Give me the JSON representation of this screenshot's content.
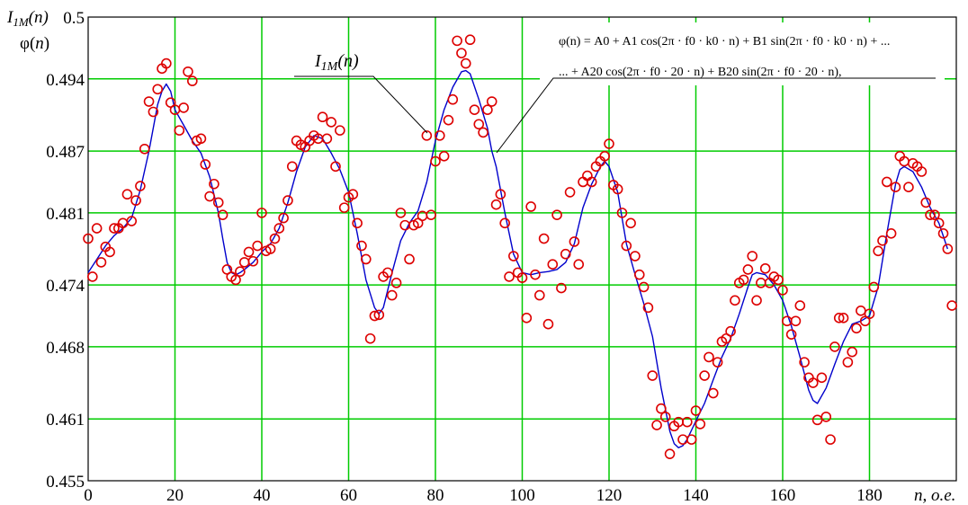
{
  "chart_data": {
    "type": "scatter",
    "ylabel_lines": [
      "I1M(n)",
      "φ(n)"
    ],
    "xlabel": "n, о.е.",
    "xlim": [
      0,
      200
    ],
    "ylim": [
      0.455,
      0.5
    ],
    "x_ticks": [
      0,
      20,
      40,
      60,
      80,
      100,
      120,
      140,
      160,
      180
    ],
    "y_ticks": [
      {
        "value": 0.455,
        "label": "0.455"
      },
      {
        "value": 0.461,
        "label": "0.461"
      },
      {
        "value": 0.468,
        "label": "0.468"
      },
      {
        "value": 0.474,
        "label": "0.474"
      },
      {
        "value": 0.481,
        "label": "0.481"
      },
      {
        "value": 0.487,
        "label": "0.487"
      },
      {
        "value": 0.494,
        "label": "0.494"
      },
      {
        "value": 0.5,
        "label": "0.5"
      }
    ],
    "grid": true,
    "grid_color": "#00cc00",
    "annotations": {
      "series_label": "I1M(n)",
      "formula_line1": "φ(n) = A0 + A1 cos(2π · f0 · k0 · n) + B1 sin(2π · f0 · k0 · n) + ...",
      "formula_line2": "... + A20 cos(2π · f0 · 20 · n) + B20 sin(2π · f0 · 20 · n),"
    },
    "series": [
      {
        "name": "I1M(n)",
        "type": "scatter",
        "color": "#dd0000",
        "x": [
          0,
          1,
          2,
          3,
          4,
          5,
          6,
          7,
          8,
          9,
          10,
          11,
          12,
          13,
          14,
          15,
          16,
          17,
          18,
          19,
          20,
          21,
          22,
          23,
          24,
          25,
          26,
          27,
          28,
          29,
          30,
          31,
          32,
          33,
          34,
          35,
          36,
          37,
          38,
          39,
          40,
          41,
          42,
          43,
          44,
          45,
          46,
          47,
          48,
          49,
          50,
          51,
          52,
          53,
          54,
          55,
          56,
          57,
          58,
          59,
          60,
          61,
          62,
          63,
          64,
          65,
          66,
          67,
          68,
          69,
          70,
          71,
          72,
          73,
          74,
          75,
          76,
          77,
          78,
          79,
          80,
          81,
          82,
          83,
          84,
          85,
          86,
          87,
          88,
          89,
          90,
          91,
          92,
          93,
          94,
          95,
          96,
          97,
          98,
          99,
          100,
          101,
          102,
          103,
          104,
          105,
          106,
          107,
          108,
          109,
          110,
          111,
          112,
          113,
          114,
          115,
          116,
          117,
          118,
          119,
          120,
          121,
          122,
          123,
          124,
          125,
          126,
          127,
          128,
          129,
          130,
          131,
          132,
          133,
          134,
          135,
          136,
          137,
          138,
          139,
          140,
          141,
          142,
          143,
          144,
          145,
          146,
          147,
          148,
          149,
          150,
          151,
          152,
          153,
          154,
          155,
          156,
          157,
          158,
          159,
          160,
          161,
          162,
          163,
          164,
          165,
          166,
          167,
          168,
          169,
          170,
          171,
          172,
          173,
          174,
          175,
          176,
          177,
          178,
          179,
          180,
          181,
          182,
          183,
          184,
          185,
          186,
          187,
          188,
          189,
          190,
          191,
          192,
          193,
          194,
          195,
          196,
          197,
          198,
          199
        ],
        "y": [
          0.4785,
          0.4748,
          0.4795,
          0.4762,
          0.4777,
          0.4772,
          0.4795,
          0.4795,
          0.48,
          0.4828,
          0.4802,
          0.4822,
          0.4836,
          0.4872,
          0.4918,
          0.4908,
          0.493,
          0.495,
          0.4955,
          0.4917,
          0.491,
          0.489,
          0.4912,
          0.4947,
          0.4938,
          0.488,
          0.4882,
          0.4857,
          0.4826,
          0.4838,
          0.482,
          0.4808,
          0.4755,
          0.4748,
          0.4745,
          0.4753,
          0.4762,
          0.4772,
          0.4763,
          0.4778,
          0.481,
          0.4773,
          0.4775,
          0.4785,
          0.4795,
          0.4805,
          0.4822,
          0.4855,
          0.488,
          0.4876,
          0.4874,
          0.488,
          0.4885,
          0.4882,
          0.4903,
          0.4882,
          0.4898,
          0.4855,
          0.489,
          0.4815,
          0.4825,
          0.4828,
          0.48,
          0.4778,
          0.4765,
          0.4688,
          0.471,
          0.4711,
          0.4748,
          0.4752,
          0.473,
          0.4742,
          0.481,
          0.4798,
          0.4765,
          0.4798,
          0.48,
          0.4807,
          0.4885,
          0.4808,
          0.486,
          0.4885,
          0.4865,
          0.49,
          0.492,
          0.4977,
          0.4965,
          0.4955,
          0.4978,
          0.491,
          0.4896,
          0.4888,
          0.491,
          0.4918,
          0.4818,
          0.4828,
          0.48,
          0.4748,
          0.4768,
          0.4752,
          0.4747,
          0.4708,
          0.4816,
          0.475,
          0.473,
          0.4785,
          0.4702,
          0.476,
          0.4808,
          0.4737,
          0.477,
          0.483,
          0.4782,
          0.476,
          0.484,
          0.4846,
          0.484,
          0.4855,
          0.486,
          0.4865,
          0.4877,
          0.4837,
          0.4833,
          0.481,
          0.4778,
          0.48,
          0.4768,
          0.475,
          0.4738,
          0.4718,
          0.4652,
          0.4604,
          0.462,
          0.4612,
          0.4576,
          0.4603,
          0.4607,
          0.459,
          0.4607,
          0.459,
          0.4618,
          0.4605,
          0.4652,
          0.467,
          0.4635,
          0.4665,
          0.4685,
          0.4688,
          0.4695,
          0.4725,
          0.4742,
          0.4745,
          0.4755,
          0.4768,
          0.4725,
          0.4742,
          0.4756,
          0.4742,
          0.4748,
          0.4745,
          0.4735,
          0.4705,
          0.4692,
          0.4705,
          0.472,
          0.4665,
          0.465,
          0.4645,
          0.4609,
          0.465,
          0.4612,
          0.459,
          0.468,
          0.4708,
          0.4708,
          0.4665,
          0.4675,
          0.4698,
          0.4715,
          0.4705,
          0.4712,
          0.4738,
          0.4773,
          0.4783,
          0.484,
          0.479,
          0.4835,
          0.4865,
          0.486,
          0.4835,
          0.4858,
          0.4855,
          0.485,
          0.482,
          0.4808,
          0.4808,
          0.48,
          0.479,
          0.4775,
          0.472
        ]
      },
      {
        "name": "φ(n)",
        "type": "line",
        "color": "#0000cc",
        "x": [
          0,
          2,
          4,
          6,
          8,
          10,
          12,
          14,
          16,
          17,
          18,
          19,
          20,
          22,
          24,
          26,
          28,
          30,
          31,
          32,
          33,
          34,
          35,
          36,
          38,
          40,
          42,
          44,
          46,
          48,
          50,
          52,
          54,
          56,
          58,
          60,
          62,
          64,
          66,
          67,
          68,
          70,
          72,
          74,
          76,
          78,
          80,
          82,
          84,
          86,
          87,
          88,
          90,
          92,
          93,
          94,
          96,
          98,
          100,
          102,
          104,
          106,
          108,
          110,
          112,
          114,
          116,
          118,
          119,
          120,
          122,
          124,
          126,
          128,
          130,
          132,
          134,
          135,
          136,
          137,
          138,
          140,
          142,
          144,
          146,
          148,
          150,
          152,
          153,
          154,
          156,
          158,
          160,
          162,
          164,
          166,
          167,
          168,
          170,
          172,
          174,
          176,
          178,
          180,
          182,
          184,
          186,
          187,
          188,
          190,
          192,
          194,
          196,
          198
        ],
        "y": [
          0.4752,
          0.4765,
          0.4778,
          0.4788,
          0.4795,
          0.4805,
          0.4832,
          0.487,
          0.4915,
          0.4928,
          0.4935,
          0.4928,
          0.491,
          0.4895,
          0.488,
          0.4868,
          0.4845,
          0.481,
          0.4785,
          0.4762,
          0.4752,
          0.475,
          0.4752,
          0.4755,
          0.4762,
          0.4772,
          0.478,
          0.4795,
          0.482,
          0.485,
          0.4874,
          0.4885,
          0.4882,
          0.4868,
          0.4852,
          0.483,
          0.479,
          0.4745,
          0.4718,
          0.4712,
          0.4718,
          0.4752,
          0.4783,
          0.48,
          0.4812,
          0.484,
          0.488,
          0.491,
          0.4932,
          0.4947,
          0.4948,
          0.4945,
          0.492,
          0.4892,
          0.487,
          0.4855,
          0.481,
          0.477,
          0.4752,
          0.475,
          0.4752,
          0.4753,
          0.4755,
          0.4762,
          0.478,
          0.4815,
          0.4838,
          0.4855,
          0.486,
          0.4855,
          0.483,
          0.478,
          0.475,
          0.4722,
          0.469,
          0.464,
          0.4598,
          0.4586,
          0.4582,
          0.4584,
          0.459,
          0.4608,
          0.4625,
          0.4648,
          0.467,
          0.4688,
          0.4712,
          0.4738,
          0.475,
          0.4752,
          0.475,
          0.474,
          0.4725,
          0.47,
          0.467,
          0.4638,
          0.4628,
          0.4625,
          0.464,
          0.4663,
          0.4685,
          0.4702,
          0.4705,
          0.471,
          0.4738,
          0.479,
          0.4838,
          0.4852,
          0.4855,
          0.485,
          0.4835,
          0.4815,
          0.48,
          0.4775
        ]
      }
    ]
  }
}
